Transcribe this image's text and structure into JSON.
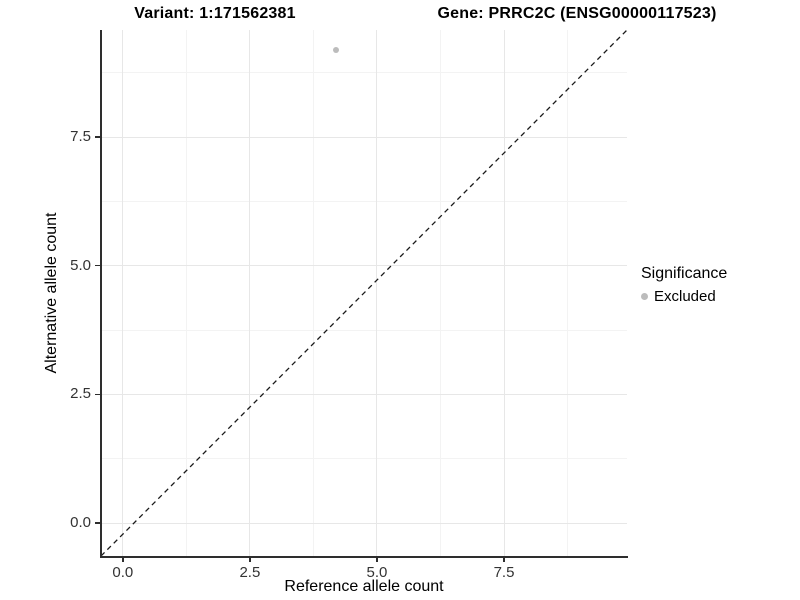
{
  "header": {
    "variant_title": "Variant: 1:171562381",
    "gene_title": "Gene: PRRC2C (ENSG00000117523)"
  },
  "chart_data": {
    "type": "scatter",
    "title": "Variant: 1:171562381 — Gene: PRRC2C (ENSG00000117523)",
    "xlabel": "Reference allele count",
    "ylabel": "Alternative allele count",
    "x_ticks": [
      "0.0",
      "2.5",
      "5.0",
      "7.5"
    ],
    "y_ticks": [
      "0.0",
      "2.5",
      "5.0",
      "7.5"
    ],
    "x_tick_values": [
      0,
      2.5,
      5,
      7.5
    ],
    "y_tick_values": [
      0,
      2.5,
      5,
      7.5
    ],
    "minor_tick_values": [
      1.25,
      3.75,
      6.25,
      8.75
    ],
    "xlim": [
      -0.43,
      9.92
    ],
    "ylim": [
      -0.64,
      9.58
    ],
    "grid": {
      "major_color": "#e7e7e7",
      "minor_color": "#f3f3f3",
      "grid_on": true
    },
    "series": [
      {
        "name": "Excluded",
        "color": "#bcbcbc",
        "points": [
          {
            "x": 4.2,
            "y": 9.2
          }
        ]
      }
    ],
    "reference_line": {
      "kind": "identity y = x",
      "style": "dashed",
      "color": "#1a1a1a",
      "from": [
        -0.43,
        -0.64
      ],
      "to": [
        9.92,
        9.58
      ]
    },
    "legend_position": "right"
  },
  "legend": {
    "title": "Significance",
    "entries": [
      {
        "label": "Excluded",
        "color": "#bcbcbc"
      }
    ]
  }
}
